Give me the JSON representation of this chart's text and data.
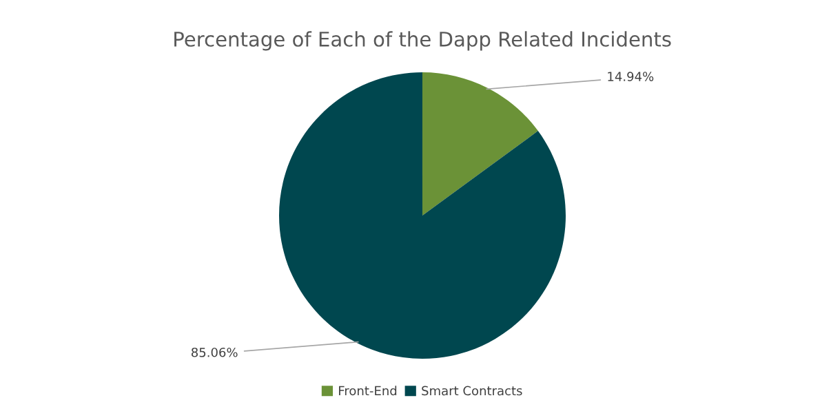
{
  "chart_data": {
    "type": "pie",
    "title": "Percentage of Each of the Dapp Related Incidents",
    "categories": [
      "Front-End",
      "Smart Contracts"
    ],
    "values": [
      14.94,
      85.06
    ],
    "colors": [
      "#6b9237",
      "#00474f"
    ],
    "value_labels": [
      "14.94%",
      "85.06%"
    ],
    "legend": "bottom"
  }
}
